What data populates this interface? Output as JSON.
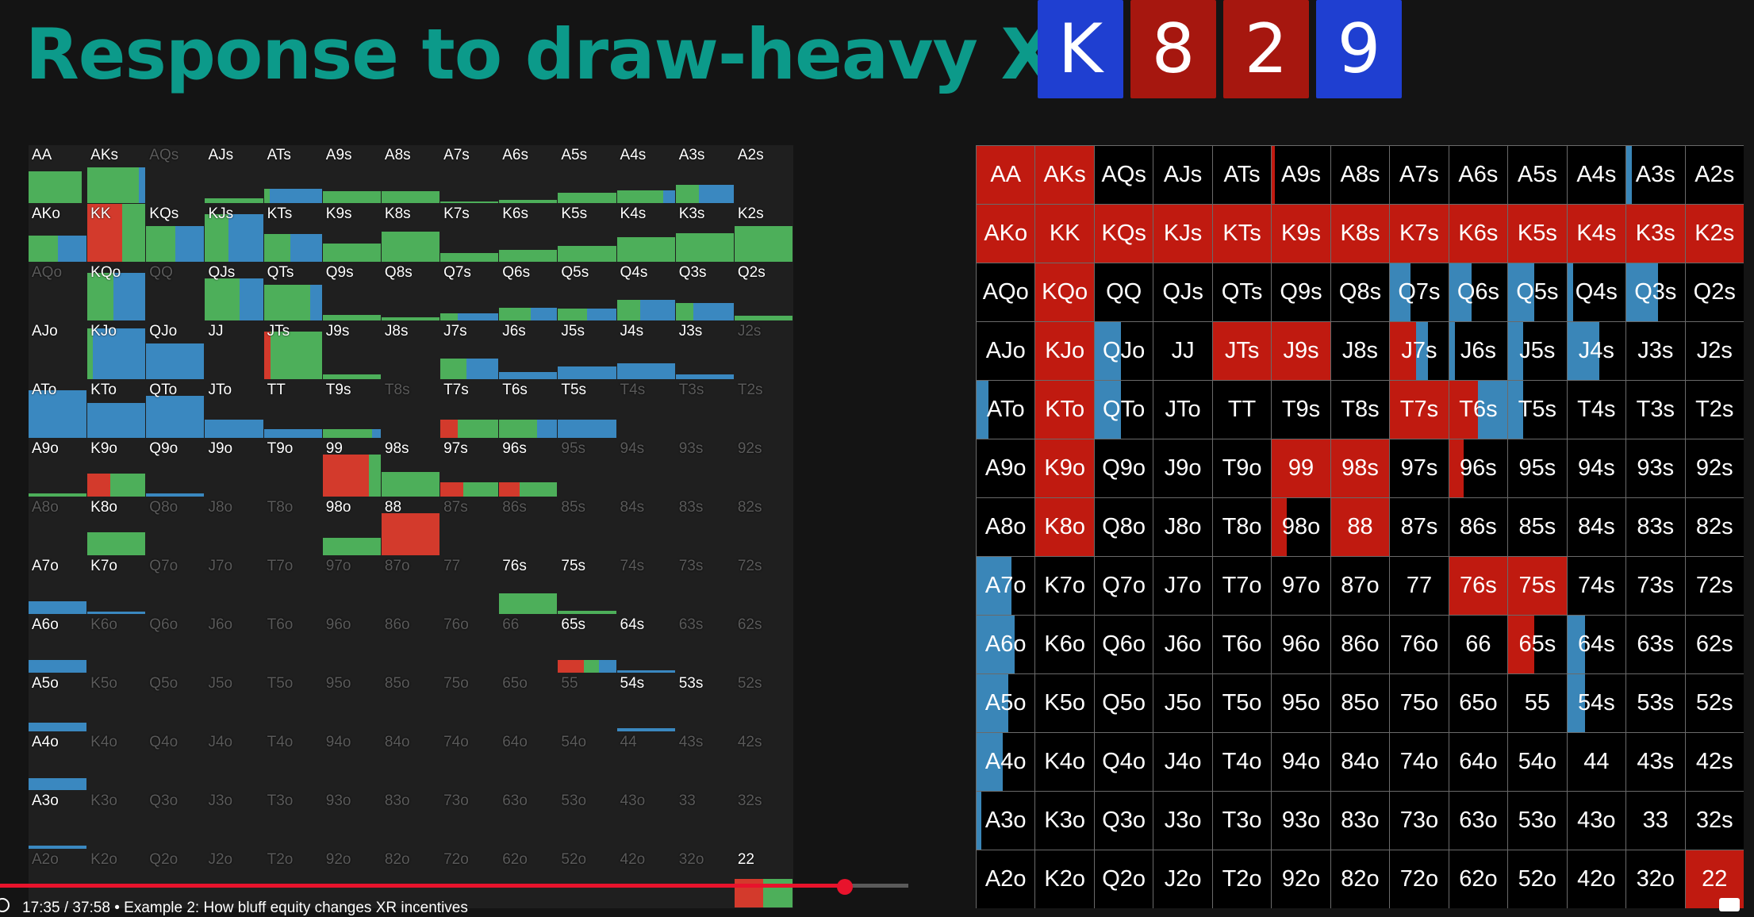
{
  "title": "Response to draw-heavy XR",
  "board": {
    "cards": [
      {
        "rank": "K",
        "color": "#1f3fd1"
      },
      {
        "rank": "8",
        "color": "#a6170f"
      },
      {
        "rank": "2",
        "color": "#a6170f"
      },
      {
        "rank": "9",
        "color": "#1f3fd1"
      }
    ]
  },
  "colors": {
    "raise": "#d33a2c",
    "call": "#4daf5a",
    "fold": "#3a88c0",
    "right_raise": "#c01a10",
    "right_call": "#3a86b8"
  },
  "left_grid": {
    "rows": [
      [
        "AA",
        "AKs",
        "AQs",
        "AJs",
        "ATs",
        "A9s",
        "A8s",
        "A7s",
        "A6s",
        "A5s",
        "A4s",
        "A3s",
        "A2s"
      ],
      [
        "AKo",
        "KK",
        "KQs",
        "KJs",
        "KTs",
        "K9s",
        "K8s",
        "K7s",
        "K6s",
        "K5s",
        "K4s",
        "K3s",
        "K2s"
      ],
      [
        "AQo",
        "KQo",
        "QQ",
        "QJs",
        "QTs",
        "Q9s",
        "Q8s",
        "Q7s",
        "Q6s",
        "Q5s",
        "Q4s",
        "Q3s",
        "Q2s"
      ],
      [
        "AJo",
        "KJo",
        "QJo",
        "JJ",
        "JTs",
        "J9s",
        "J8s",
        "J7s",
        "J6s",
        "J5s",
        "J4s",
        "J3s",
        "J2s"
      ],
      [
        "ATo",
        "KTo",
        "QTo",
        "JTo",
        "TT",
        "T9s",
        "T8s",
        "T7s",
        "T6s",
        "T5s",
        "T4s",
        "T3s",
        "T2s"
      ],
      [
        "A9o",
        "K9o",
        "Q9o",
        "J9o",
        "T9o",
        "99",
        "98s",
        "97s",
        "96s",
        "95s",
        "94s",
        "93s",
        "92s"
      ],
      [
        "A8o",
        "K8o",
        "Q8o",
        "J8o",
        "T8o",
        "98o",
        "88",
        "87s",
        "86s",
        "85s",
        "84s",
        "83s",
        "82s"
      ],
      [
        "A7o",
        "K7o",
        "Q7o",
        "J7o",
        "T7o",
        "97o",
        "87o",
        "77",
        "76s",
        "75s",
        "74s",
        "73s",
        "72s"
      ],
      [
        "A6o",
        "K6o",
        "Q6o",
        "J6o",
        "T6o",
        "96o",
        "86o",
        "76o",
        "66",
        "65s",
        "64s",
        "63s",
        "62s"
      ],
      [
        "A5o",
        "K5o",
        "Q5o",
        "J5o",
        "T5o",
        "95o",
        "85o",
        "75o",
        "65o",
        "55",
        "54s",
        "53s",
        "52s"
      ],
      [
        "A4o",
        "K4o",
        "Q4o",
        "J4o",
        "T4o",
        "94o",
        "84o",
        "74o",
        "64o",
        "54o",
        "44",
        "43s",
        "42s"
      ],
      [
        "A3o",
        "K3o",
        "Q3o",
        "J3o",
        "T3o",
        "93o",
        "83o",
        "73o",
        "63o",
        "53o",
        "43o",
        "33",
        "32s"
      ],
      [
        "A2o",
        "K2o",
        "Q2o",
        "J2o",
        "T2o",
        "92o",
        "82o",
        "72o",
        "62o",
        "52o",
        "42o",
        "32o",
        "22"
      ]
    ],
    "dim": [
      "AQs",
      "AQo",
      "QQ",
      "J2s",
      "T8s",
      "T4s",
      "T3s",
      "T2s",
      "95s",
      "94s",
      "93s",
      "92s",
      "A8o",
      "Q8o",
      "J8o",
      "T8o",
      "87s",
      "86s",
      "85s",
      "84s",
      "83s",
      "82s",
      "Q7o",
      "J7o",
      "T7o",
      "97o",
      "87o",
      "77",
      "74s",
      "73s",
      "72s",
      "K6o",
      "Q6o",
      "J6o",
      "T6o",
      "96o",
      "86o",
      "76o",
      "66",
      "63s",
      "62s",
      "K5o",
      "Q5o",
      "J5o",
      "T5o",
      "95o",
      "85o",
      "75o",
      "65o",
      "55",
      "52s",
      "K4o",
      "Q4o",
      "J4o",
      "T4o",
      "94o",
      "84o",
      "74o",
      "64o",
      "54o",
      "44",
      "43s",
      "42s",
      "K3o",
      "Q3o",
      "J3o",
      "T3o",
      "93o",
      "83o",
      "73o",
      "63o",
      "53o",
      "43o",
      "33",
      "32s",
      "A2o",
      "K2o",
      "Q2o",
      "J2o",
      "T2o",
      "92o",
      "82o",
      "72o",
      "62o",
      "52o",
      "42o",
      "32o"
    ],
    "freq": {
      "AA": {
        "h": 0.55,
        "r": 0,
        "c": 0.92,
        "f": 0
      },
      "AKs": {
        "h": 0.62,
        "r": 0,
        "c": 0.88,
        "f": 0.12
      },
      "AJs": {
        "h": 0.08,
        "r": 0,
        "c": 1,
        "f": 0
      },
      "ATs": {
        "h": 0.25,
        "r": 0,
        "c": 0.1,
        "f": 0.9
      },
      "A9s": {
        "h": 0.2,
        "r": 0,
        "c": 1,
        "f": 0
      },
      "A8s": {
        "h": 0.2,
        "r": 0,
        "c": 1,
        "f": 0
      },
      "A7s": {
        "h": 0.03,
        "r": 0,
        "c": 1,
        "f": 0
      },
      "A6s": {
        "h": 0.06,
        "r": 0,
        "c": 1,
        "f": 0
      },
      "A5s": {
        "h": 0.18,
        "r": 0,
        "c": 1,
        "f": 0
      },
      "A4s": {
        "h": 0.22,
        "r": 0,
        "c": 0.8,
        "f": 0.2
      },
      "A3s": {
        "h": 0.32,
        "r": 0,
        "c": 0.4,
        "f": 0.6
      },
      "AKo": {
        "h": 0.45,
        "r": 0,
        "c": 0.5,
        "f": 0.5
      },
      "KK": {
        "h": 1,
        "r": 0.6,
        "c": 0.4,
        "f": 0
      },
      "KQs": {
        "h": 0.62,
        "r": 0,
        "c": 0.5,
        "f": 0.5
      },
      "KJs": {
        "h": 0.82,
        "r": 0,
        "c": 0.4,
        "f": 0.6
      },
      "KTs": {
        "h": 0.48,
        "r": 0,
        "c": 0.45,
        "f": 0.55
      },
      "K9s": {
        "h": 0.32,
        "r": 0,
        "c": 1,
        "f": 0
      },
      "K8s": {
        "h": 0.52,
        "r": 0,
        "c": 1,
        "f": 0
      },
      "K7s": {
        "h": 0.15,
        "r": 0,
        "c": 1,
        "f": 0
      },
      "K6s": {
        "h": 0.2,
        "r": 0,
        "c": 1,
        "f": 0
      },
      "K5s": {
        "h": 0.28,
        "r": 0,
        "c": 1,
        "f": 0
      },
      "K4s": {
        "h": 0.42,
        "r": 0,
        "c": 1,
        "f": 0
      },
      "K3s": {
        "h": 0.5,
        "r": 0,
        "c": 1,
        "f": 0
      },
      "K2s": {
        "h": 0.62,
        "r": 0,
        "c": 1,
        "f": 0
      },
      "KQo": {
        "h": 0.82,
        "r": 0,
        "c": 0.45,
        "f": 0.55
      },
      "QJs": {
        "h": 0.72,
        "r": 0,
        "c": 0.6,
        "f": 0.4
      },
      "QTs": {
        "h": 0.62,
        "r": 0,
        "c": 0.8,
        "f": 0.2
      },
      "Q9s": {
        "h": 0.1,
        "r": 0,
        "c": 1,
        "f": 0
      },
      "Q8s": {
        "h": 0.06,
        "r": 0,
        "c": 1,
        "f": 0
      },
      "Q7s": {
        "h": 0.12,
        "r": 0,
        "c": 0.3,
        "f": 0.7
      },
      "Q6s": {
        "h": 0.22,
        "r": 0,
        "c": 0.55,
        "f": 0.45
      },
      "Q5s": {
        "h": 0.2,
        "r": 0,
        "c": 0.5,
        "f": 0.5
      },
      "Q4s": {
        "h": 0.35,
        "r": 0,
        "c": 0.4,
        "f": 0.6
      },
      "Q3s": {
        "h": 0.3,
        "r": 0,
        "c": 0.3,
        "f": 0.7
      },
      "Q2s": {
        "h": 0.08,
        "r": 0,
        "c": 1,
        "f": 0
      },
      "KJo": {
        "h": 0.88,
        "r": 0,
        "c": 0.1,
        "f": 0.9
      },
      "QJo": {
        "h": 0.62,
        "r": 0,
        "c": 0,
        "f": 1
      },
      "JTs": {
        "h": 0.82,
        "r": 0.12,
        "c": 0.88,
        "f": 0
      },
      "J9s": {
        "h": 0.08,
        "r": 0,
        "c": 1,
        "f": 0
      },
      "J7s": {
        "h": 0.35,
        "r": 0,
        "c": 0.45,
        "f": 0.55
      },
      "J6s": {
        "h": 0.12,
        "r": 0,
        "c": 0,
        "f": 1
      },
      "J5s": {
        "h": 0.22,
        "r": 0,
        "c": 0,
        "f": 1
      },
      "J4s": {
        "h": 0.28,
        "r": 0,
        "c": 0,
        "f": 1
      },
      "J3s": {
        "h": 0.08,
        "r": 0,
        "c": 0,
        "f": 1
      },
      "ATo": {
        "h": 0.82,
        "r": 0,
        "c": 0,
        "f": 1
      },
      "KTo": {
        "h": 0.6,
        "r": 0,
        "c": 0,
        "f": 1
      },
      "QTo": {
        "h": 0.72,
        "r": 0,
        "c": 0,
        "f": 1
      },
      "JTo": {
        "h": 0.32,
        "r": 0,
        "c": 0,
        "f": 1
      },
      "TT": {
        "h": 0.15,
        "r": 0,
        "c": 0,
        "f": 1
      },
      "T9s": {
        "h": 0.15,
        "r": 0,
        "c": 0.85,
        "f": 0.15
      },
      "T7s": {
        "h": 0.32,
        "r": 0.3,
        "c": 0.7,
        "f": 0
      },
      "T6s": {
        "h": 0.32,
        "r": 0,
        "c": 0.65,
        "f": 0.35
      },
      "T5s": {
        "h": 0.32,
        "r": 0,
        "c": 0,
        "f": 1
      },
      "A9o": {
        "h": 0.06,
        "r": 0,
        "c": 1,
        "f": 0
      },
      "K9o": {
        "h": 0.4,
        "r": 0.4,
        "c": 0.6,
        "f": 0
      },
      "Q9o": {
        "h": 0.06,
        "r": 0,
        "c": 0,
        "f": 1
      },
      "99": {
        "h": 0.72,
        "r": 0.8,
        "c": 0.2,
        "f": 0
      },
      "98s": {
        "h": 0.42,
        "r": 0,
        "c": 1,
        "f": 0
      },
      "97s": {
        "h": 0.25,
        "r": 0.4,
        "c": 0.6,
        "f": 0
      },
      "96s": {
        "h": 0.25,
        "r": 0.35,
        "c": 0.65,
        "f": 0
      },
      "K8o": {
        "h": 0.4,
        "r": 0,
        "c": 1,
        "f": 0
      },
      "98o": {
        "h": 0.3,
        "r": 0,
        "c": 1,
        "f": 0
      },
      "88": {
        "h": 0.72,
        "r": 1,
        "c": 0,
        "f": 0
      },
      "A7o": {
        "h": 0.22,
        "r": 0,
        "c": 0,
        "f": 1
      },
      "K7o": {
        "h": 0.04,
        "r": 0,
        "c": 0,
        "f": 1
      },
      "76s": {
        "h": 0.35,
        "r": 0,
        "c": 1,
        "f": 0
      },
      "75s": {
        "h": 0.06,
        "r": 0,
        "c": 1,
        "f": 0
      },
      "A6o": {
        "h": 0.22,
        "r": 0,
        "c": 0,
        "f": 1
      },
      "65s": {
        "h": 0.22,
        "r": 0.45,
        "c": 0.25,
        "f": 0.3
      },
      "64s": {
        "h": 0.04,
        "r": 0,
        "c": 0,
        "f": 1
      },
      "A5o": {
        "h": 0.15,
        "r": 0,
        "c": 0,
        "f": 1
      },
      "54s": {
        "h": 0.06,
        "r": 0,
        "c": 0,
        "f": 1
      },
      "A4o": {
        "h": 0.2,
        "r": 0,
        "c": 0,
        "f": 1
      },
      "A3o": {
        "h": 0.06,
        "r": 0,
        "c": 0,
        "f": 1
      },
      "22": {
        "h": 0.5,
        "r": 0.5,
        "c": 0.5,
        "f": 0
      }
    }
  },
  "right_grid": {
    "red": [
      "AA",
      "AKs",
      "AKo",
      "KK",
      "KQs",
      "KJs",
      "KTs",
      "K9s",
      "K8s",
      "K7s",
      "K6s",
      "K5s",
      "K4s",
      "K3s",
      "K2s",
      "KQo",
      "KJo",
      "JTs",
      "J9s",
      "KTo",
      "T7s",
      "K9o",
      "99",
      "98s",
      "K8o",
      "88",
      "22"
    ],
    "partial": {
      "A9s": {
        "r": 0.05
      },
      "A3s": {
        "f": 0.1
      },
      "Q7s": {
        "f": 0.35
      },
      "Q6s": {
        "f": 0.38
      },
      "Q5s": {
        "f": 0.45
      },
      "Q4s": {
        "f": 0.1
      },
      "Q3s": {
        "f": 0.55
      },
      "QJo": {
        "f": 0.45
      },
      "J7s": {
        "r": 0.45,
        "f": 0.2
      },
      "J6s": {
        "f": 0.1
      },
      "J5s": {
        "f": 0.25
      },
      "J4s": {
        "f": 0.55
      },
      "ATo": {
        "f": 0.2
      },
      "QTo": {
        "f": 0.45
      },
      "T6s": {
        "r": 0.5,
        "f": 0.5
      },
      "T5s": {
        "f": 0.25
      },
      "96s": {
        "r": 0.25
      },
      "98o": {
        "r": 0.25
      },
      "A7o": {
        "f": 0.6
      },
      "76s": {
        "r": 1
      },
      "75s": {
        "r": 1
      },
      "A6o": {
        "f": 0.65
      },
      "65s": {
        "r": 0.45
      },
      "64s": {
        "f": 0.3
      },
      "A5o": {
        "f": 0.55
      },
      "54s": {
        "f": 0.3
      },
      "A4o": {
        "f": 0.45
      },
      "A3o": {
        "f": 0.08
      }
    }
  },
  "player": {
    "time": "17:35 / 37:58",
    "separator": "•",
    "chapter": "Example 2: How bluff equity changes XR incentives",
    "played_fraction": 0.93
  }
}
